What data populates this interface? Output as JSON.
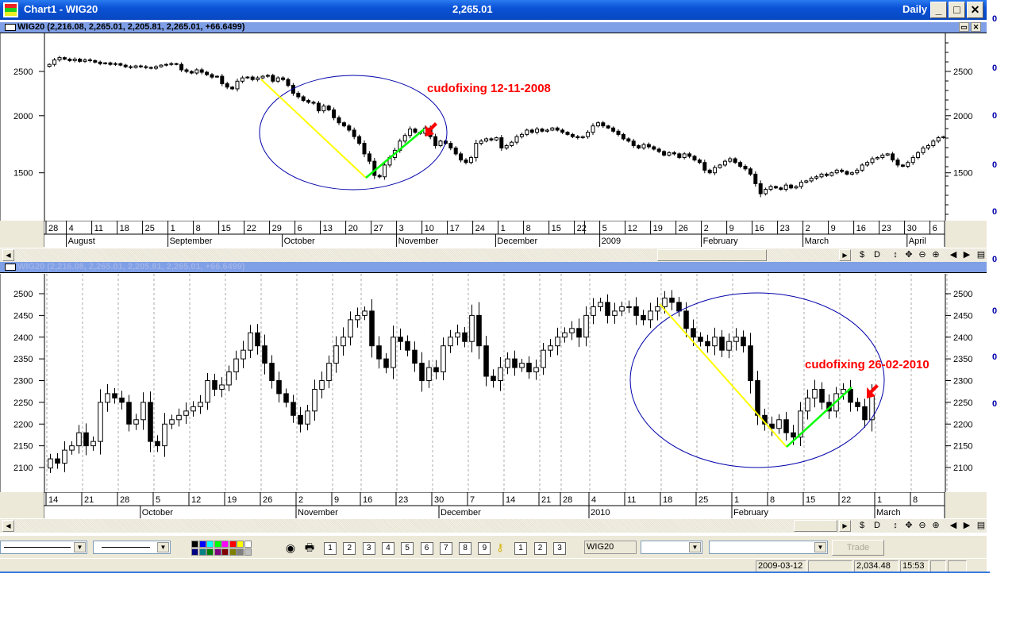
{
  "window": {
    "title": "Chart1 - WIG20",
    "last_price": "2,265.01",
    "period": "Daily",
    "minimize": "_",
    "maximize": "□",
    "close": "✕"
  },
  "panes": [
    {
      "header": "WIG20 (2,216.08, 2,265.01, 2,205.81, 2,265.01, +66.6499)"
    },
    {
      "header": "WIG20 (2,216.08, 2,265.01, 2,205.81, 2,265.01, +66.6499)"
    }
  ],
  "right_margin_markers": [
    "0",
    "0",
    "0",
    "0",
    "0",
    "0",
    "0",
    "0",
    "0"
  ],
  "scroll_tools": [
    "$",
    "D",
    "↕",
    "✥",
    "⊖",
    "⊕",
    "◀",
    "▶",
    "▤"
  ],
  "chart_data": [
    {
      "type": "candlestick",
      "symbol": "WIG20",
      "y_scale": "log",
      "ylim": [
        1200,
        2750
      ],
      "y_ticks": [
        1500,
        2000,
        2500
      ],
      "grid": false,
      "weeks": [
        {
          "label": "28",
          "closes": [
            2590,
            2650,
            2680,
            2660
          ]
        },
        {
          "label": "4",
          "closes": [
            2640,
            2660,
            2630,
            2650,
            2640
          ]
        },
        {
          "label": "11",
          "closes": [
            2620,
            2600,
            2610,
            2590,
            2600
          ]
        },
        {
          "label": "18",
          "closes": [
            2580,
            2560,
            2550,
            2570,
            2560
          ]
        },
        {
          "label": "25",
          "closes": [
            2550,
            2540,
            2560,
            2580,
            2590
          ]
        },
        {
          "label": "1",
          "closes": [
            2600,
            2590,
            2520,
            2500,
            2480
          ]
        },
        {
          "label": "8",
          "closes": [
            2520,
            2490,
            2460,
            2430,
            2440
          ]
        },
        {
          "label": "15",
          "closes": [
            2350,
            2310,
            2290,
            2380,
            2420
          ]
        },
        {
          "label": "22",
          "closes": [
            2430,
            2400,
            2420,
            2440,
            2450
          ]
        },
        {
          "label": "29",
          "closes": [
            2380,
            2420,
            2400,
            2330,
            2240
          ]
        },
        {
          "label": "6",
          "closes": [
            2200,
            2160,
            2140,
            2130,
            2050
          ]
        },
        {
          "label": "13",
          "closes": [
            2100,
            2060,
            1980,
            1930,
            1900
          ]
        },
        {
          "label": "20",
          "closes": [
            1860,
            1800,
            1740,
            1650,
            1590
          ]
        },
        {
          "label": "27",
          "closes": [
            1480,
            1470,
            1560,
            1620,
            1680
          ]
        },
        {
          "label": "3",
          "closes": [
            1760,
            1810,
            1870,
            1840,
            1830
          ]
        },
        {
          "label": "10",
          "closes": [
            1880,
            1800,
            1720,
            1760,
            1740
          ]
        },
        {
          "label": "17",
          "closes": [
            1700,
            1650,
            1600,
            1580,
            1620
          ]
        },
        {
          "label": "24",
          "closes": [
            1740,
            1760,
            1780,
            1770,
            1790
          ]
        },
        {
          "label": "1",
          "closes": [
            1700,
            1720,
            1750,
            1800,
            1820
          ]
        },
        {
          "label": "8",
          "closes": [
            1860,
            1840,
            1870,
            1850,
            1860
          ]
        },
        {
          "label": "15",
          "closes": [
            1880,
            1860,
            1840,
            1820,
            1800
          ]
        },
        {
          "label": "22",
          "closes": [
            1790,
            1800
          ]
        },
        {
          "label": "",
          "closes": [
            1840,
            1900,
            1930
          ]
        },
        {
          "label": "5",
          "closes": [
            1900,
            1880,
            1850,
            1820,
            1780
          ]
        },
        {
          "label": "12",
          "closes": [
            1760,
            1720,
            1700,
            1730,
            1710
          ]
        },
        {
          "label": "19",
          "closes": [
            1690,
            1670,
            1640,
            1660,
            1650
          ]
        },
        {
          "label": "26",
          "closes": [
            1620,
            1650,
            1630,
            1600,
            1580
          ]
        },
        {
          "label": "2",
          "closes": [
            1520,
            1500,
            1540,
            1560,
            1590
          ]
        },
        {
          "label": "9",
          "closes": [
            1610,
            1580,
            1550,
            1530,
            1490
          ]
        },
        {
          "label": "16",
          "closes": [
            1420,
            1350,
            1380,
            1400,
            1390
          ]
        },
        {
          "label": "23",
          "closes": [
            1380,
            1410,
            1390,
            1400,
            1430
          ]
        },
        {
          "label": "2",
          "closes": [
            1440,
            1460,
            1470,
            1490,
            1480
          ]
        },
        {
          "label": "9",
          "closes": [
            1500,
            1520,
            1510,
            1490,
            1500
          ]
        },
        {
          "label": "16",
          "closes": [
            1520,
            1560,
            1580,
            1610,
            1620
          ]
        },
        {
          "label": "23",
          "closes": [
            1640,
            1650,
            1600,
            1560,
            1550
          ]
        },
        {
          "label": "30",
          "closes": [
            1580,
            1620,
            1660,
            1700,
            1720
          ]
        },
        {
          "label": "6",
          "closes": [
            1760,
            1790,
            1800
          ]
        }
      ],
      "months": [
        "August",
        "September",
        "October",
        "November",
        "December",
        "2009",
        "February",
        "March",
        "April"
      ],
      "annotation": {
        "text": "cudofixing 12-11-2008",
        "color": "#ff0000"
      },
      "trend_colors": {
        "down": "#ffff00",
        "up": "#00ff00",
        "ellipse": "#0000aa"
      }
    },
    {
      "type": "candlestick",
      "symbol": "WIG20",
      "y_scale": "linear",
      "ylim": [
        2050,
        2545
      ],
      "y_ticks": [
        2100,
        2150,
        2200,
        2250,
        2300,
        2350,
        2400,
        2450,
        2500
      ],
      "grid": true,
      "weeks": [
        {
          "label": "14",
          "closes": [
            2120,
            2110,
            2140,
            2150,
            2180
          ]
        },
        {
          "label": "21",
          "closes": [
            2150,
            2160,
            2250,
            2270,
            2260
          ]
        },
        {
          "label": "28",
          "closes": [
            2250,
            2200,
            2210,
            2250,
            2160
          ]
        },
        {
          "label": "5",
          "closes": [
            2150,
            2200,
            2210,
            2220,
            2230
          ]
        },
        {
          "label": "12",
          "closes": [
            2240,
            2250,
            2300,
            2280,
            2290
          ]
        },
        {
          "label": "19",
          "closes": [
            2320,
            2350,
            2370,
            2410,
            2380
          ]
        },
        {
          "label": "26",
          "closes": [
            2340,
            2300,
            2270,
            2250,
            2220
          ]
        },
        {
          "label": "2",
          "closes": [
            2200,
            2230,
            2280,
            2300,
            2340
          ]
        },
        {
          "label": "9",
          "closes": [
            2380,
            2400,
            2440,
            2450
          ]
        },
        {
          "label": "16",
          "closes": [
            2460,
            2380,
            2350,
            2330,
            2400
          ]
        },
        {
          "label": "23",
          "closes": [
            2390,
            2370,
            2340,
            2300,
            2330
          ]
        },
        {
          "label": "30",
          "closes": [
            2320,
            2380,
            2400,
            2410,
            2390
          ]
        },
        {
          "label": "7",
          "closes": [
            2450,
            2380,
            2310,
            2300,
            2330
          ]
        },
        {
          "label": "14",
          "closes": [
            2350,
            2330,
            2340,
            2320,
            2330
          ]
        },
        {
          "label": "21",
          "closes": [
            2370,
            2380,
            2400
          ]
        },
        {
          "label": "28",
          "closes": [
            2410,
            2420,
            2400,
            2450
          ]
        },
        {
          "label": "4",
          "closes": [
            2470,
            2480,
            2450,
            2460,
            2470
          ]
        },
        {
          "label": "11",
          "closes": [
            2470,
            2450,
            2440,
            2460,
            2470
          ]
        },
        {
          "label": "18",
          "closes": [
            2490,
            2480,
            2460,
            2420,
            2400
          ]
        },
        {
          "label": "25",
          "closes": [
            2390,
            2380,
            2400,
            2370,
            2390
          ]
        },
        {
          "label": "1",
          "closes": [
            2400,
            2380,
            2300,
            2220,
            2200
          ]
        },
        {
          "label": "8",
          "closes": [
            2190,
            2210,
            2180,
            2170,
            2230
          ]
        },
        {
          "label": "15",
          "closes": [
            2260,
            2280,
            2250,
            2230,
            2270
          ]
        },
        {
          "label": "22",
          "closes": [
            2280,
            2250,
            2240,
            2210,
            2265
          ]
        },
        {
          "label": "1",
          "closes": []
        },
        {
          "label": "8",
          "closes": []
        },
        {
          "label": "1",
          "closes": []
        }
      ],
      "months": [
        "October",
        "November",
        "December",
        "2010",
        "February",
        "March"
      ],
      "annotation": {
        "text": "cudofixing 26-02-2010",
        "color": "#ff0000"
      },
      "trend_colors": {
        "down": "#ffff00",
        "up": "#00ff00",
        "ellipse": "#0000aa"
      }
    }
  ],
  "toolbar": {
    "palette": [
      "#000000",
      "#0000ff",
      "#00ffff",
      "#00ff00",
      "#ff00ff",
      "#ff0000",
      "#ffff00",
      "#ffffff",
      "#000080",
      "#008080",
      "#008000",
      "#800080",
      "#800000",
      "#808000",
      "#808080",
      "#c0c0c0"
    ],
    "tool_icons": [
      "1",
      "2",
      "3",
      "4",
      "5",
      "6",
      "7",
      "8",
      "9"
    ],
    "layout_icons": [
      "1",
      "2",
      "3"
    ],
    "symbol_field": "WIG20",
    "trade_button": "Trade"
  },
  "status": {
    "date": "2009-03-12",
    "blank": "",
    "value": "2,034.48",
    "time": "15:53"
  }
}
